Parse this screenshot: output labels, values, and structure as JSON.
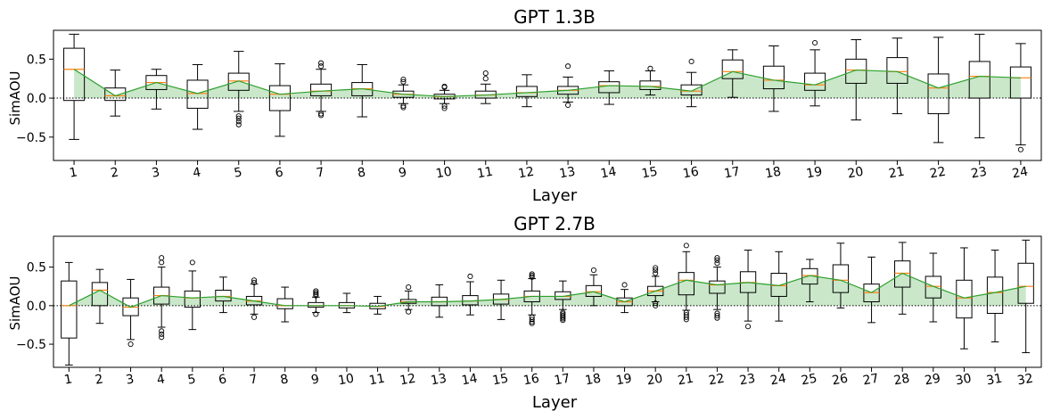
{
  "colors": {
    "box_edge": "#000000",
    "median": "#ff7f0e",
    "mean_line": "#2ca02c",
    "mean_fill": "#2ca02c",
    "zero_line": "#000000"
  },
  "chart_data": [
    {
      "type": "box",
      "title": "GPT 1.3B",
      "xlabel": "Layer",
      "ylabel": "SimAOU",
      "ylim": [
        -0.8,
        0.87
      ],
      "yticks": [
        -0.5,
        0.0,
        0.5
      ],
      "ytick_labels": [
        "−0.5",
        "0.0",
        "0.5"
      ],
      "zero_line": "dotted",
      "grid": false,
      "categories": [
        "1",
        "2",
        "3",
        "4",
        "5",
        "6",
        "7",
        "8",
        "9",
        "10",
        "11",
        "12",
        "13",
        "14",
        "15",
        "16",
        "17",
        "18",
        "19",
        "20",
        "21",
        "22",
        "23",
        "24"
      ],
      "boxes": [
        {
          "q1": -0.03,
          "med": 0.37,
          "q3": 0.64,
          "wlo": -0.53,
          "whi": 0.82,
          "out": []
        },
        {
          "q1": -0.03,
          "med": 0.03,
          "q3": 0.13,
          "wlo": -0.23,
          "whi": 0.36,
          "out": []
        },
        {
          "q1": 0.11,
          "med": 0.2,
          "q3": 0.29,
          "wlo": -0.14,
          "whi": 0.37,
          "out": []
        },
        {
          "q1": -0.13,
          "med": 0.06,
          "q3": 0.23,
          "wlo": -0.4,
          "whi": 0.43,
          "out": []
        },
        {
          "q1": 0.1,
          "med": 0.22,
          "q3": 0.32,
          "wlo": -0.17,
          "whi": 0.6,
          "out": [
            -0.23,
            -0.26,
            -0.3,
            -0.34
          ]
        },
        {
          "q1": -0.16,
          "med": 0.05,
          "q3": 0.16,
          "wlo": -0.49,
          "whi": 0.44,
          "out": []
        },
        {
          "q1": 0.03,
          "med": 0.09,
          "q3": 0.18,
          "wlo": -0.17,
          "whi": 0.37,
          "out": [
            0.41,
            0.45,
            -0.2,
            -0.22
          ]
        },
        {
          "q1": 0.03,
          "med": 0.12,
          "q3": 0.2,
          "wlo": -0.24,
          "whi": 0.43,
          "out": []
        },
        {
          "q1": 0.01,
          "med": 0.05,
          "q3": 0.09,
          "wlo": -0.07,
          "whi": 0.17,
          "out": [
            0.21,
            0.24,
            -0.1,
            -0.12
          ]
        },
        {
          "q1": -0.01,
          "med": 0.02,
          "q3": 0.05,
          "wlo": -0.07,
          "whi": 0.1,
          "out": [
            0.14,
            0.15,
            -0.1,
            -0.13
          ]
        },
        {
          "q1": 0.0,
          "med": 0.04,
          "q3": 0.09,
          "wlo": -0.07,
          "whi": 0.18,
          "out": [
            0.25,
            0.32
          ]
        },
        {
          "q1": 0.02,
          "med": 0.07,
          "q3": 0.15,
          "wlo": -0.11,
          "whi": 0.3,
          "out": []
        },
        {
          "q1": 0.05,
          "med": 0.1,
          "q3": 0.15,
          "wlo": -0.05,
          "whi": 0.27,
          "out": [
            0.41,
            -0.09
          ]
        },
        {
          "q1": 0.07,
          "med": 0.16,
          "q3": 0.21,
          "wlo": -0.08,
          "whi": 0.35,
          "out": []
        },
        {
          "q1": 0.11,
          "med": 0.15,
          "q3": 0.22,
          "wlo": 0.04,
          "whi": 0.35,
          "out": [
            0.38
          ]
        },
        {
          "q1": 0.04,
          "med": 0.09,
          "q3": 0.17,
          "wlo": -0.11,
          "whi": 0.33,
          "out": [
            0.47
          ]
        },
        {
          "q1": 0.25,
          "med": 0.34,
          "q3": 0.49,
          "wlo": 0.01,
          "whi": 0.62,
          "out": []
        },
        {
          "q1": 0.12,
          "med": 0.23,
          "q3": 0.41,
          "wlo": -0.17,
          "whi": 0.67,
          "out": []
        },
        {
          "q1": 0.1,
          "med": 0.17,
          "q3": 0.32,
          "wlo": -0.1,
          "whi": 0.62,
          "out": [
            0.71
          ]
        },
        {
          "q1": 0.19,
          "med": 0.36,
          "q3": 0.5,
          "wlo": -0.28,
          "whi": 0.75,
          "out": []
        },
        {
          "q1": 0.19,
          "med": 0.34,
          "q3": 0.52,
          "wlo": -0.2,
          "whi": 0.77,
          "out": []
        },
        {
          "q1": -0.2,
          "med": 0.13,
          "q3": 0.31,
          "wlo": -0.57,
          "whi": 0.78,
          "out": []
        },
        {
          "q1": 0.0,
          "med": 0.28,
          "q3": 0.47,
          "wlo": -0.51,
          "whi": 0.82,
          "out": []
        },
        {
          "q1": 0.0,
          "med": 0.26,
          "q3": 0.4,
          "wlo": -0.6,
          "whi": 0.7,
          "out": [
            -0.66
          ]
        }
      ]
    },
    {
      "type": "box",
      "title": "GPT 2.7B",
      "xlabel": "Layer",
      "ylabel": "SimAOU",
      "ylim": [
        -0.8,
        0.9
      ],
      "yticks": [
        -0.5,
        0.0,
        0.5
      ],
      "ytick_labels": [
        "−0.5",
        "0.0",
        "0.5"
      ],
      "zero_line": "dotted",
      "grid": false,
      "categories": [
        "1",
        "2",
        "3",
        "4",
        "5",
        "6",
        "7",
        "8",
        "9",
        "10",
        "11",
        "12",
        "13",
        "14",
        "15",
        "16",
        "17",
        "18",
        "19",
        "20",
        "21",
        "22",
        "23",
        "24",
        "25",
        "26",
        "27",
        "28",
        "29",
        "30",
        "31",
        "32"
      ],
      "boxes": [
        {
          "q1": -0.42,
          "med": 0.0,
          "q3": 0.32,
          "wlo": -0.77,
          "whi": 0.56,
          "out": []
        },
        {
          "q1": 0.0,
          "med": 0.2,
          "q3": 0.3,
          "wlo": -0.23,
          "whi": 0.47,
          "out": []
        },
        {
          "q1": -0.13,
          "med": -0.02,
          "q3": 0.1,
          "wlo": -0.44,
          "whi": 0.34,
          "out": [
            -0.5
          ]
        },
        {
          "q1": 0.02,
          "med": 0.13,
          "q3": 0.24,
          "wlo": -0.28,
          "whi": 0.5,
          "out": [
            0.56,
            0.62,
            -0.33,
            -0.37,
            -0.41
          ]
        },
        {
          "q1": -0.02,
          "med": 0.1,
          "q3": 0.19,
          "wlo": -0.31,
          "whi": 0.45,
          "out": [
            0.56
          ]
        },
        {
          "q1": 0.06,
          "med": 0.12,
          "q3": 0.2,
          "wlo": -0.09,
          "whi": 0.37,
          "out": []
        },
        {
          "q1": 0.01,
          "med": 0.06,
          "q3": 0.12,
          "wlo": -0.11,
          "whi": 0.28,
          "out": [
            0.3,
            0.33,
            -0.15
          ]
        },
        {
          "q1": -0.04,
          "med": 0.0,
          "q3": 0.09,
          "wlo": -0.21,
          "whi": 0.24,
          "out": []
        },
        {
          "q1": -0.02,
          "med": 0.0,
          "q3": 0.04,
          "wlo": -0.09,
          "whi": 0.11,
          "out": [
            0.13,
            0.15,
            0.17,
            0.19,
            -0.11
          ]
        },
        {
          "q1": -0.03,
          "med": 0.0,
          "q3": 0.04,
          "wlo": -0.09,
          "whi": 0.16,
          "out": []
        },
        {
          "q1": -0.04,
          "med": -0.01,
          "q3": 0.03,
          "wlo": -0.11,
          "whi": 0.12,
          "out": []
        },
        {
          "q1": 0.03,
          "med": 0.05,
          "q3": 0.08,
          "wlo": -0.05,
          "whi": 0.19,
          "out": [
            0.24,
            -0.08
          ]
        },
        {
          "q1": 0.0,
          "med": 0.05,
          "q3": 0.11,
          "wlo": -0.15,
          "whi": 0.27,
          "out": []
        },
        {
          "q1": 0.01,
          "med": 0.06,
          "q3": 0.13,
          "wlo": -0.12,
          "whi": 0.31,
          "out": [
            0.38
          ]
        },
        {
          "q1": 0.02,
          "med": 0.08,
          "q3": 0.15,
          "wlo": -0.18,
          "whi": 0.33,
          "out": []
        },
        {
          "q1": 0.05,
          "med": 0.12,
          "q3": 0.19,
          "wlo": -0.12,
          "whi": 0.35,
          "out": [
            0.37,
            0.39,
            0.41,
            -0.15,
            -0.18,
            -0.21,
            -0.23
          ]
        },
        {
          "q1": 0.08,
          "med": 0.12,
          "q3": 0.18,
          "wlo": -0.05,
          "whi": 0.32,
          "out": [
            -0.09,
            -0.11,
            -0.13,
            -0.15,
            -0.17,
            -0.19
          ]
        },
        {
          "q1": 0.12,
          "med": 0.18,
          "q3": 0.26,
          "wlo": 0.0,
          "whi": 0.4,
          "out": [
            0.46
          ]
        },
        {
          "q1": 0.0,
          "med": 0.05,
          "q3": 0.1,
          "wlo": -0.09,
          "whi": 0.21,
          "out": [
            0.27
          ]
        },
        {
          "q1": 0.13,
          "med": 0.19,
          "q3": 0.25,
          "wlo": 0.05,
          "whi": 0.38,
          "out": [
            0.42,
            0.46,
            0.49,
            0.03,
            0.0
          ]
        },
        {
          "q1": 0.14,
          "med": 0.33,
          "q3": 0.43,
          "wlo": -0.06,
          "whi": 0.7,
          "out": [
            0.78,
            -0.09,
            -0.12,
            -0.15,
            -0.18
          ]
        },
        {
          "q1": 0.16,
          "med": 0.27,
          "q3": 0.32,
          "wlo": -0.05,
          "whi": 0.5,
          "out": [
            0.55,
            0.59,
            0.62,
            -0.1,
            -0.13,
            -0.16
          ]
        },
        {
          "q1": 0.17,
          "med": 0.3,
          "q3": 0.44,
          "wlo": -0.2,
          "whi": 0.72,
          "out": [
            -0.27
          ]
        },
        {
          "q1": 0.12,
          "med": 0.26,
          "q3": 0.42,
          "wlo": -0.2,
          "whi": 0.7,
          "out": []
        },
        {
          "q1": 0.28,
          "med": 0.39,
          "q3": 0.48,
          "wlo": 0.05,
          "whi": 0.6,
          "out": []
        },
        {
          "q1": 0.17,
          "med": 0.33,
          "q3": 0.53,
          "wlo": -0.03,
          "whi": 0.81,
          "out": []
        },
        {
          "q1": 0.05,
          "med": 0.17,
          "q3": 0.28,
          "wlo": -0.22,
          "whi": 0.63,
          "out": []
        },
        {
          "q1": 0.24,
          "med": 0.42,
          "q3": 0.58,
          "wlo": -0.11,
          "whi": 0.82,
          "out": []
        },
        {
          "q1": 0.1,
          "med": 0.25,
          "q3": 0.38,
          "wlo": -0.21,
          "whi": 0.68,
          "out": []
        },
        {
          "q1": -0.16,
          "med": 0.1,
          "q3": 0.33,
          "wlo": -0.56,
          "whi": 0.75,
          "out": []
        },
        {
          "q1": -0.1,
          "med": 0.17,
          "q3": 0.37,
          "wlo": -0.47,
          "whi": 0.72,
          "out": []
        },
        {
          "q1": 0.03,
          "med": 0.25,
          "q3": 0.55,
          "wlo": -0.61,
          "whi": 0.85,
          "out": []
        }
      ]
    }
  ]
}
